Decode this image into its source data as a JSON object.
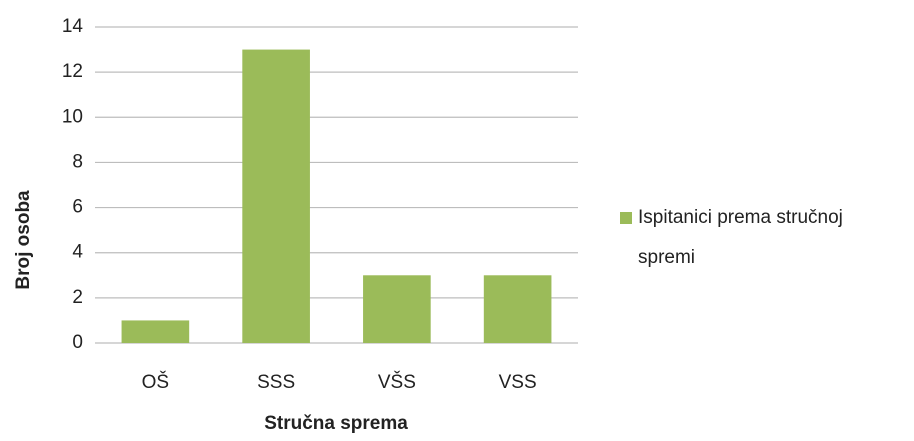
{
  "chart_data": {
    "type": "bar",
    "categories": [
      "OŠ",
      "SSS",
      "VŠS",
      "VSS"
    ],
    "series": [
      {
        "name": "Ispitanici prema stručnoj spremi",
        "color": "#9bbb59",
        "values": [
          1,
          13,
          3,
          3
        ]
      }
    ],
    "xlabel": "Stručna sprema",
    "ylabel": "Broj osoba",
    "ylim": [
      0,
      14
    ],
    "yticks": [
      0,
      2,
      4,
      6,
      8,
      10,
      12,
      14
    ],
    "grid": true,
    "legend": "right"
  }
}
